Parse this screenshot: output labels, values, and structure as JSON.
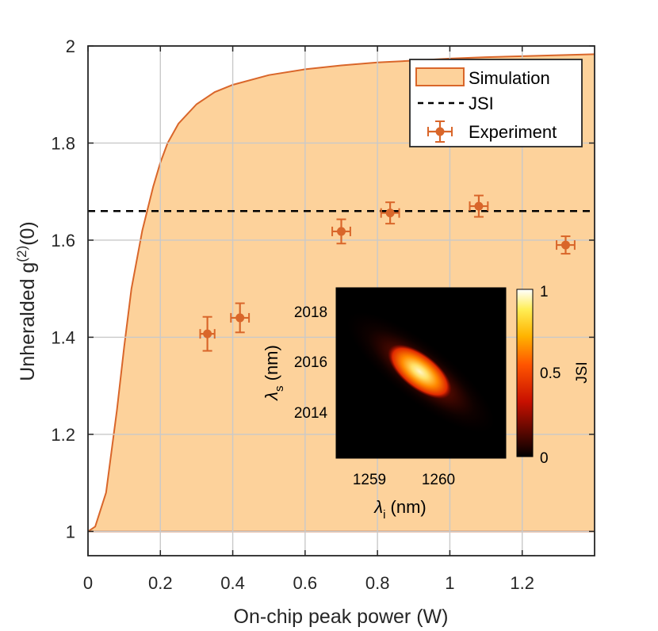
{
  "chart_data": {
    "type": "line",
    "xlabel": "On-chip peak power (W)",
    "ylabel": "Unheralded g",
    "ylabel_sup": "(2)",
    "ylabel_tail": "(0)",
    "xlim": [
      0,
      1.4
    ],
    "ylim": [
      0.95,
      2.0
    ],
    "xticks": [
      0,
      0.2,
      0.4,
      0.6,
      0.8,
      1,
      1.2
    ],
    "xtick_labels": [
      "0",
      "0.2",
      "0.4",
      "0.6",
      "0.8",
      "1",
      "1.2"
    ],
    "yticks": [
      1,
      1.2,
      1.4,
      1.6,
      1.8,
      2
    ],
    "ytick_labels": [
      "1",
      "1.2",
      "1.4",
      "1.6",
      "1.8",
      "2"
    ],
    "grid": true,
    "series": [
      {
        "name": "Simulation",
        "kind": "filled-band",
        "color": "#d9662a",
        "fill": "#fdd29b",
        "x": [
          0,
          0.02,
          0.05,
          0.08,
          0.1,
          0.12,
          0.15,
          0.18,
          0.2,
          0.22,
          0.25,
          0.3,
          0.35,
          0.4,
          0.5,
          0.6,
          0.7,
          0.8,
          0.9,
          1.0,
          1.1,
          1.2,
          1.3,
          1.4
        ],
        "upper": [
          1.0,
          1.01,
          1.08,
          1.25,
          1.38,
          1.5,
          1.62,
          1.71,
          1.76,
          1.8,
          1.84,
          1.88,
          1.905,
          1.92,
          1.94,
          1.952,
          1.96,
          1.966,
          1.97,
          1.974,
          1.977,
          1.979,
          1.981,
          1.983
        ],
        "lower": 1.0
      },
      {
        "name": "JSI",
        "kind": "hline",
        "color": "#000000",
        "y": 1.66
      },
      {
        "name": "Experiment",
        "kind": "errorbar",
        "color": "#d9662a",
        "x": [
          0.33,
          0.42,
          0.7,
          0.835,
          1.08,
          1.32
        ],
        "y": [
          1.407,
          1.44,
          1.618,
          1.656,
          1.67,
          1.59
        ],
        "xerr": [
          0.02,
          0.025,
          0.025,
          0.025,
          0.025,
          0.025
        ],
        "yerr": [
          0.035,
          0.03,
          0.025,
          0.022,
          0.022,
          0.018
        ]
      }
    ],
    "legend": {
      "placement": "top-right",
      "entries": [
        "Simulation",
        "JSI",
        "Experiment"
      ]
    },
    "inset": {
      "type": "heatmap",
      "xlabel": "λ",
      "xlabel_sub": "i",
      "xlabel_tail": " (nm)",
      "ylabel": "λ",
      "ylabel_sub": "s",
      "ylabel_tail": " (nm)",
      "xticks": [
        1259,
        1260
      ],
      "xtick_labels": [
        "1259",
        "1260"
      ],
      "yticks": [
        2014,
        2016,
        2018
      ],
      "ytick_labels": [
        "2014",
        "2016",
        "2018"
      ],
      "colorbar_label": "JSI",
      "colorbar_ticks": [
        "0",
        "0.5",
        "1"
      ],
      "colormap": "hot"
    }
  }
}
